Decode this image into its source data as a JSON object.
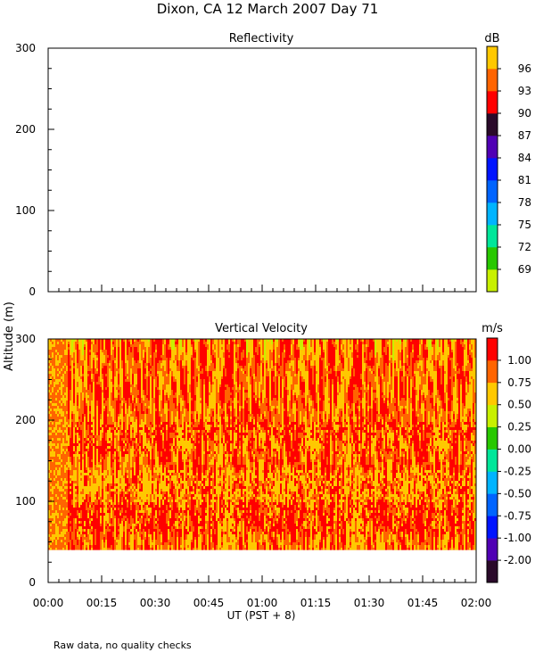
{
  "title": "Dixon, CA 12 March 2007  Day  71",
  "y_axis_label": "Altitude (m)",
  "x_axis_label": "UT  (PST + 8)",
  "footnote": "Raw data, no quality checks",
  "chart_data": [
    {
      "type": "heatmap",
      "title": "Reflectivity",
      "ylabel": "Altitude (m)",
      "ylim": [
        0,
        300
      ],
      "y_ticks": [
        "0",
        "100",
        "200",
        "300"
      ],
      "xlim": [
        "00:00",
        "02:00"
      ],
      "data": "none displayed (panel empty)",
      "colorbar": {
        "unit": "dB",
        "ticks": [
          "69",
          "72",
          "75",
          "78",
          "81",
          "84",
          "87",
          "90",
          "93",
          "96"
        ],
        "colors": [
          "#c8f000",
          "#28c800",
          "#00e69a",
          "#00b4ff",
          "#0064ff",
          "#0014ff",
          "#5000b4",
          "#2a0a2a",
          "#ff0000",
          "#ff6400",
          "#ffc800"
        ]
      }
    },
    {
      "type": "heatmap",
      "title": "Vertical Velocity",
      "ylabel": "Altitude (m)",
      "ylim": [
        0,
        300
      ],
      "y_ticks": [
        "0",
        "100",
        "200",
        "300"
      ],
      "xlim": [
        "00:00",
        "02:00"
      ],
      "x_ticks": [
        "00:00",
        "00:15",
        "00:30",
        "00:45",
        "01:00",
        "01:15",
        "01:30",
        "01:45",
        "02:00"
      ],
      "data_range_altitude_m": [
        40,
        300
      ],
      "data_range_time": [
        "00:00",
        "02:00"
      ],
      "dominant_values_m_s": [
        0.5,
        1.0
      ],
      "colorbar": {
        "unit": "m/s",
        "ticks": [
          "-2.00",
          "-1.00",
          "-0.75",
          "-0.50",
          "-0.25",
          "0.00",
          "0.25",
          "0.50",
          "0.75",
          "1.00"
        ],
        "colors": [
          "#2a0a2a",
          "#5000b4",
          "#0014ff",
          "#0064ff",
          "#00b4ff",
          "#00e69a",
          "#28c800",
          "#c8f000",
          "#ffc800",
          "#ff6400",
          "#ff0000"
        ]
      }
    }
  ]
}
